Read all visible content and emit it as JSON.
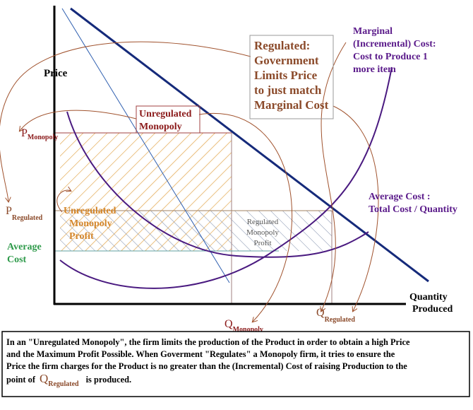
{
  "axes": {
    "y_label": "Price",
    "x_label": [
      "Quantity",
      "Produced"
    ]
  },
  "labels": {
    "regulated_note": [
      "Regulated:",
      "Government",
      "Limits Price",
      "to just match",
      "Marginal Cost"
    ],
    "marginal_cost": [
      "Marginal",
      "(Incremental) Cost:",
      "Cost to Produce 1",
      "more item"
    ],
    "unregulated_monopoly": [
      "Unregulated",
      "Monopoly"
    ],
    "average_cost_curve": [
      "Average Cost :",
      "Total Cost / Quantity"
    ],
    "unregulated_profit": [
      "Unregulated",
      "Monopoly",
      "Profit"
    ],
    "regulated_profit": [
      "Regulated",
      "Monopoly",
      "Profit"
    ],
    "average_cost_level": [
      "Average",
      "Cost"
    ],
    "p_monopoly": {
      "symbol": "P",
      "subscript": "Monopoly"
    },
    "p_regulated": {
      "symbol": "P",
      "subscript": "Regulated"
    },
    "q_monopoly": {
      "symbol": "Q",
      "subscript": "Monopoly"
    },
    "q_regulated": {
      "symbol": "Q",
      "subscript": "Regulated"
    }
  },
  "caption": {
    "lines": [
      "In an \"Unregulated Monopoly\", the firm limits the production of the Product in order to obtain a high Price",
      "and the Maximum Profit Possible.   When Goverment \"Regulates\" a Monopoly firm, it tries to ensure the",
      "Price the firm charges for the Product is no greater than the (Incremental) Cost of  raising Production to the"
    ],
    "last": {
      "lead": "point of",
      "symbol": "Q",
      "subscript": "Regulated",
      "tail": "is produced."
    }
  }
}
